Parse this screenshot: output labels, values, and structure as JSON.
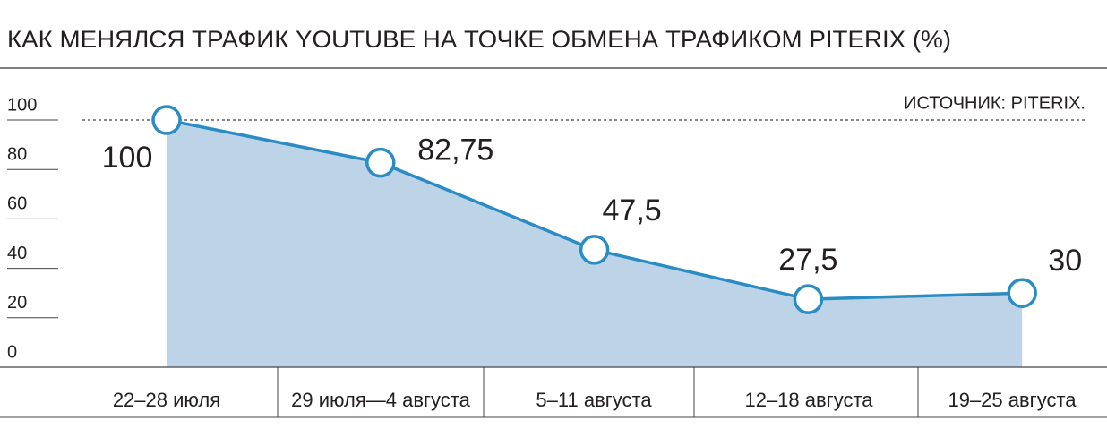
{
  "chart_data": {
    "type": "line",
    "title": "КАК МЕНЯЛСЯ ТРАФИК YOUTUBE НА ТОЧКЕ ОБМЕНА ТРАФИКОМ PITERIX (%)",
    "source": "ИСТОЧНИК: PITERIX.",
    "categories": [
      "22–28 июля",
      "29 июля—4 августа",
      "5–11 августа",
      "12–18 августа",
      "19–25 августа"
    ],
    "values": [
      100,
      82.75,
      47.5,
      27.5,
      30
    ],
    "value_labels": [
      "100",
      "82,75",
      "47,5",
      "27,5",
      "30"
    ],
    "color": "#2b8cc4",
    "area_color": "#bcd3e8",
    "ylim": [
      0,
      100
    ],
    "yticks": [
      0,
      20,
      40,
      60,
      80,
      100
    ]
  }
}
